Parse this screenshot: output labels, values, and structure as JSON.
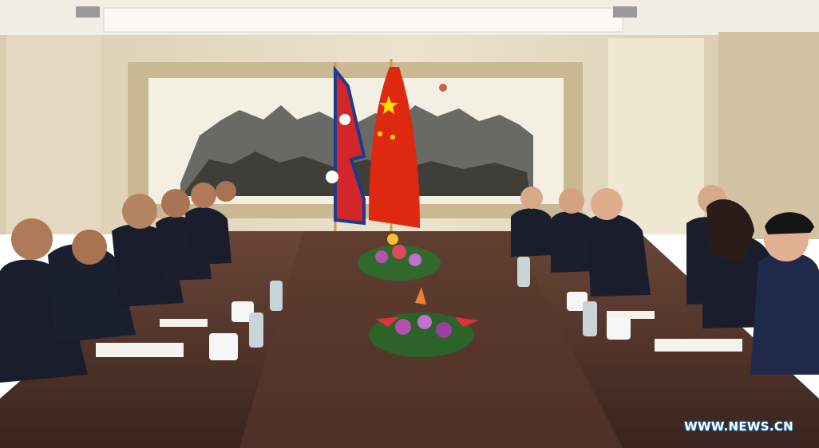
{
  "photo": {
    "watermark": "WWW.NEWS.CN",
    "scene_elements": [
      "nepal-flag",
      "china-flag",
      "landscape-painting",
      "conference-table",
      "flower-arrangement"
    ],
    "colors": {
      "wall": "#e6dcc6",
      "ceiling": "#f2efe6",
      "table": "#4a3026",
      "suit": "#1a1d2b",
      "nepal_red": "#d2262a",
      "nepal_blue": "#1b3c8c",
      "china_red": "#de2910",
      "china_star": "#ffde00"
    }
  }
}
